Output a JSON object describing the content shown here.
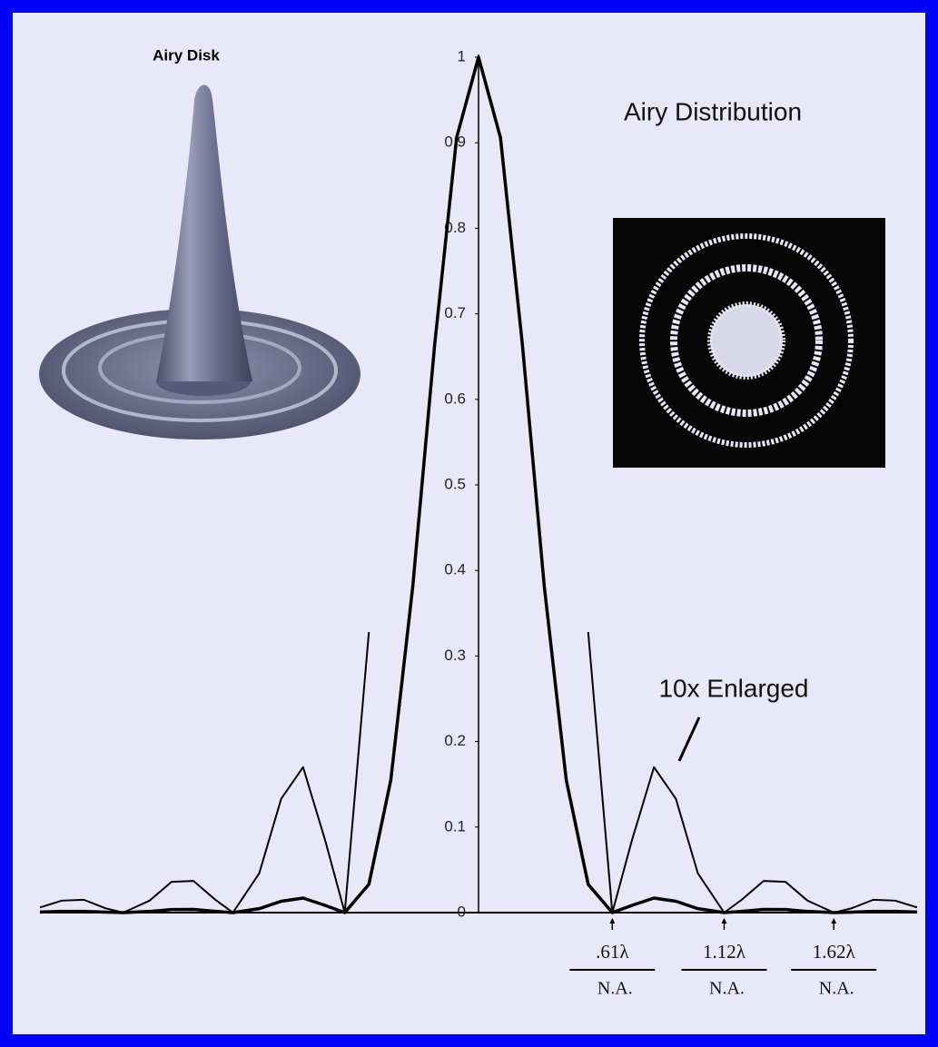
{
  "chart_data": {
    "type": "line",
    "title": "Airy Distribution",
    "image_label": "Airy Disk",
    "x": [
      -2.0,
      -1.9,
      -1.8,
      -1.7,
      -1.62,
      -1.5,
      -1.4,
      -1.3,
      -1.2,
      -1.12,
      -1.0,
      -0.9,
      -0.8,
      -0.7,
      -0.61,
      -0.5,
      -0.4,
      -0.3,
      -0.2,
      -0.1,
      0,
      0.1,
      0.2,
      0.3,
      0.4,
      0.5,
      0.61,
      0.7,
      0.8,
      0.9,
      1.0,
      1.12,
      1.2,
      1.3,
      1.4,
      1.5,
      1.62,
      1.7,
      1.8,
      1.9,
      2.0
    ],
    "series": [
      {
        "color": "#000000",
        "values": [
          0.0006,
          0.0014,
          0.0015,
          0.0005,
          0,
          0.0014,
          0.0036,
          0.0037,
          0.0015,
          0,
          0.0046,
          0.0133,
          0.017,
          0.0085,
          0,
          0.033,
          0.155,
          0.381,
          0.664,
          0.906,
          1,
          0.906,
          0.664,
          0.381,
          0.155,
          0.033,
          0,
          0.0085,
          0.017,
          0.0133,
          0.0046,
          0,
          0.0015,
          0.0037,
          0.0036,
          0.0014,
          0,
          0.0005,
          0.0015,
          0.0014,
          0.0006
        ]
      },
      {
        "name": "10x Enlarged",
        "color": "#000000",
        "values": [
          0.006,
          0.014,
          0.015,
          0.005,
          0,
          0.014,
          0.036,
          0.037,
          0.015,
          0,
          0.046,
          0.133,
          0.17,
          0.085,
          0,
          0.328,
          null,
          null,
          null,
          null,
          null,
          null,
          null,
          null,
          null,
          0.328,
          0,
          0.085,
          0.17,
          0.133,
          0.046,
          0,
          0.015,
          0.037,
          0.036,
          0.014,
          0,
          0.005,
          0.015,
          0.014,
          0.006
        ]
      }
    ],
    "xlim": [
      -2.0,
      2.0
    ],
    "ylim": [
      0,
      1
    ],
    "yticks": [
      0,
      0.1,
      0.2,
      0.3,
      0.4,
      0.5,
      0.6,
      0.7,
      0.8,
      0.9,
      1
    ],
    "x_annotations": [
      {
        "x": 0.61,
        "numerator": ".61λ",
        "denominator": "N.A."
      },
      {
        "x": 1.12,
        "numerator": "1.12λ",
        "denominator": "N.A."
      },
      {
        "x": 1.62,
        "numerator": "1.62λ",
        "denominator": "N.A."
      }
    ]
  }
}
